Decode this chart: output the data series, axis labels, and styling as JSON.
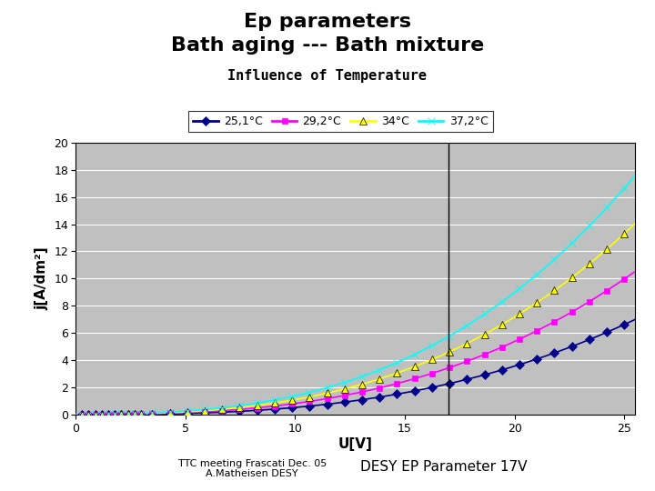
{
  "title_line1": "Ep parameters",
  "title_line2": "Bath aging --- Bath mixture",
  "subtitle": "Influence of Temperature",
  "xlabel": "U[V]",
  "ylabel": "j[A/dm²]",
  "xlim": [
    0,
    25.5
  ],
  "ylim": [
    0,
    20
  ],
  "xticks": [
    0,
    5,
    10,
    15,
    20,
    25
  ],
  "yticks": [
    0,
    2,
    4,
    6,
    8,
    10,
    12,
    14,
    16,
    18,
    20
  ],
  "vline_x": 17,
  "footer_left": "TTC meeting Frascati Dec. 05\nA.Matheisen DESY",
  "footer_right": "DESY EP Parameter 17V",
  "series": [
    {
      "label": "25,1°C",
      "color": "#00008B",
      "marker": "D",
      "markersize": 5,
      "a": 0.012,
      "b": 0.55,
      "c": 0.0008,
      "d": 2.8
    },
    {
      "label": "29,2°C",
      "color": "#FF00FF",
      "marker": "s",
      "markersize": 5,
      "a": 0.022,
      "b": 0.55,
      "c": 0.0012,
      "d": 2.8
    },
    {
      "label": "34°C",
      "color": "#FFFF00",
      "marker": "^",
      "markersize": 6,
      "a": 0.03,
      "b": 0.55,
      "c": 0.0016,
      "d": 2.8
    },
    {
      "label": "37,2°C",
      "color": "#00FFFF",
      "marker": "x",
      "markersize": 6,
      "a": 0.038,
      "b": 0.55,
      "c": 0.002,
      "d": 2.8
    }
  ],
  "plot_bg": "#C0C0C0",
  "fig_bg": "#FFFFFF",
  "title_fontsize": 16,
  "subtitle_fontsize": 11,
  "axis_label_fontsize": 11,
  "tick_fontsize": 9,
  "legend_fontsize": 9,
  "footer_fontsize": 8
}
